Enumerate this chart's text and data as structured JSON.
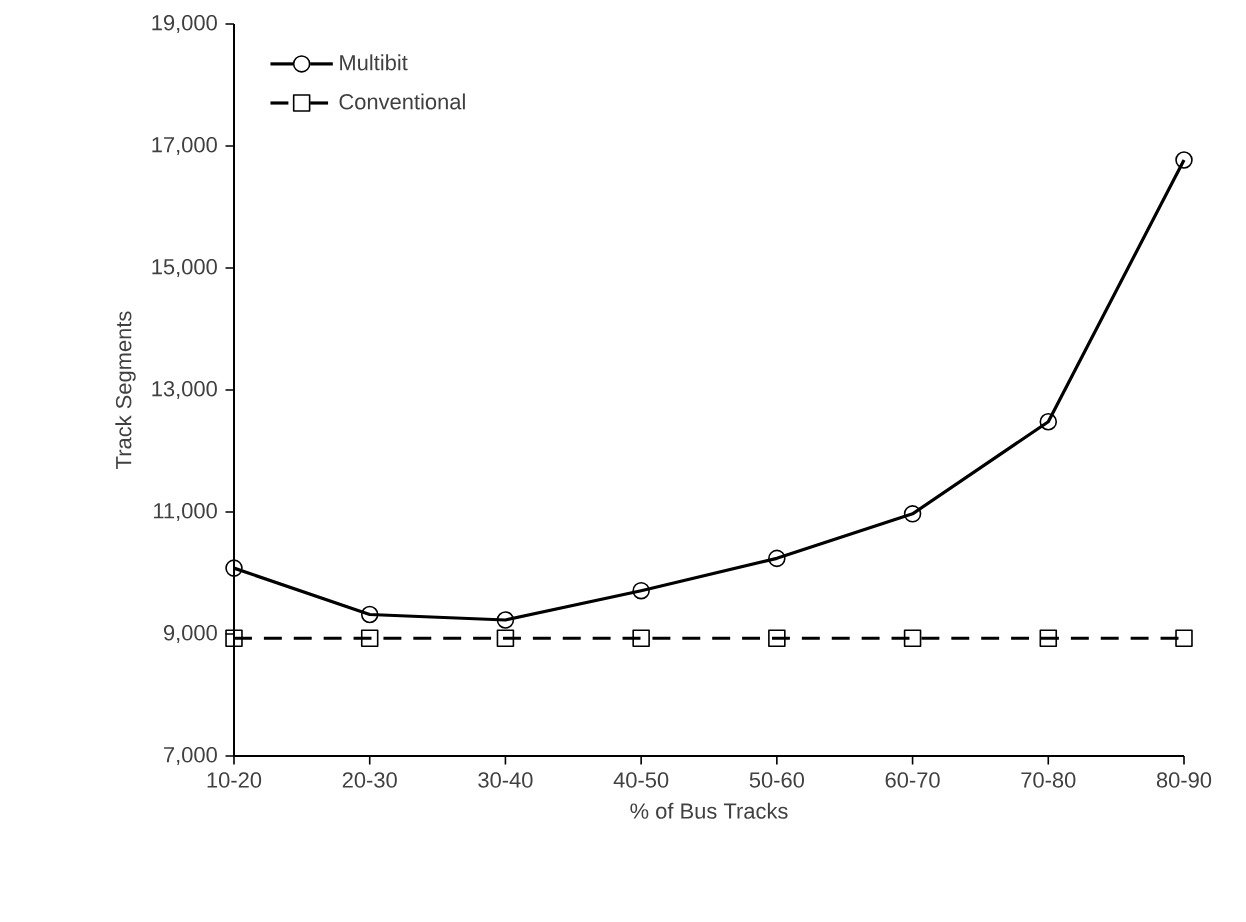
{
  "chart_data": {
    "type": "line",
    "xlabel": "% of Bus Tracks",
    "ylabel": "Track Segments",
    "categories": [
      "10-20",
      "20-30",
      "30-40",
      "40-50",
      "50-60",
      "60-70",
      "70-80",
      "80-90"
    ],
    "series": [
      {
        "name": "Multibit",
        "color": "#000000",
        "marker": "circle",
        "line_style": "solid",
        "values": [
          10080,
          9320,
          9230,
          9710,
          10240,
          10970,
          12480,
          16770
        ]
      },
      {
        "name": "Conventional",
        "color": "#000000",
        "marker": "square",
        "line_style": "dashed",
        "values": [
          8930,
          8930,
          8930,
          8930,
          8930,
          8930,
          8930,
          8930
        ]
      }
    ],
    "ylim": [
      7000,
      19000
    ],
    "yticks": [
      {
        "value": 7000,
        "label": "7,000"
      },
      {
        "value": 9000,
        "label": "9,000"
      },
      {
        "value": 11000,
        "label": "11,000"
      },
      {
        "value": 13000,
        "label": "13,000"
      },
      {
        "value": 15000,
        "label": "15,000"
      },
      {
        "value": 17000,
        "label": "17,000"
      },
      {
        "value": 19000,
        "label": "19,000"
      }
    ],
    "grid": false,
    "legend": "top left"
  }
}
